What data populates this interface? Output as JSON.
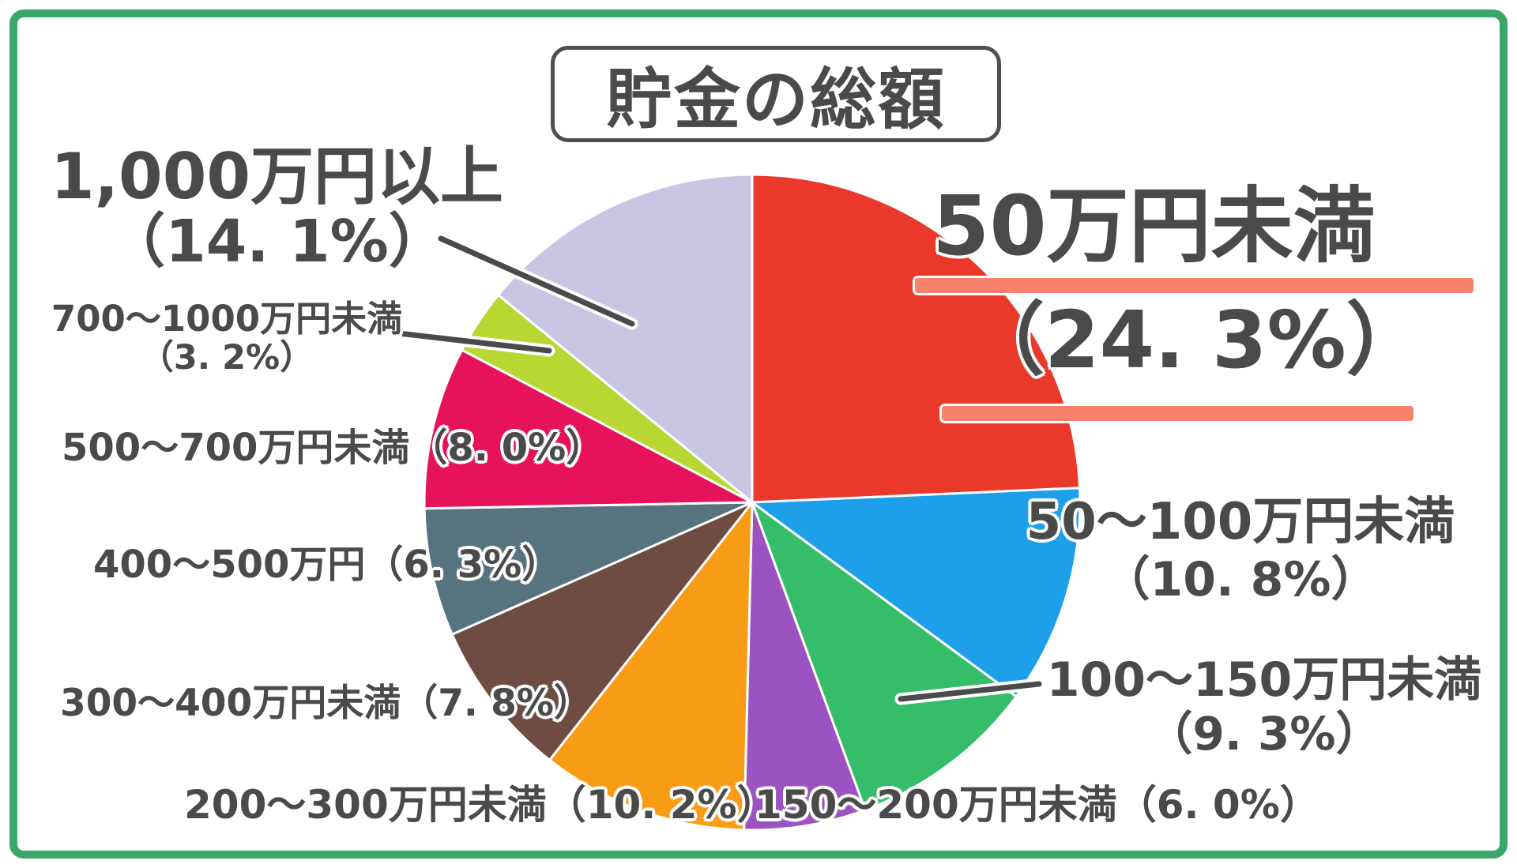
{
  "title": "貯金の総額",
  "colors": {
    "frame_green": "#3aa669",
    "underline_salmon": "#f8826b",
    "text_gray": "#4a4a4a",
    "slice_border_white": "#ffffff"
  },
  "chart_data": {
    "type": "pie",
    "title": "貯金の総額",
    "start_angle_deg": 0,
    "direction": "clockwise",
    "legend_position": "around-slices",
    "slices": [
      {
        "label": "50万円未満",
        "value": 24.3,
        "color": "#ea392a"
      },
      {
        "label": "50〜100万円未満",
        "value": 10.8,
        "color": "#1e9fe9"
      },
      {
        "label": "100〜150万円未満",
        "value": 9.3,
        "color": "#36bd69"
      },
      {
        "label": "150〜200万円未満",
        "value": 6.0,
        "color": "#9b53c1"
      },
      {
        "label": "200〜300万円未満",
        "value": 10.2,
        "color": "#f89c16"
      },
      {
        "label": "300〜400万円未満",
        "value": 7.8,
        "color": "#6f4c42"
      },
      {
        "label": "400〜500万円",
        "value": 6.3,
        "color": "#56737f"
      },
      {
        "label": "500〜700万円未満",
        "value": 8.0,
        "color": "#e6135c"
      },
      {
        "label": "700〜1000万円未満",
        "value": 3.2,
        "color": "#b8d733"
      },
      {
        "label": "1,000万円以上",
        "value": 14.1,
        "color": "#c9c6e4"
      }
    ]
  },
  "labels": {
    "u50": {
      "line1": "50万円未満",
      "line2": "（24. 3%）"
    },
    "r50_100": {
      "line1": "50〜100万円未満",
      "line2": "（10. 8%）"
    },
    "r100_150": {
      "line1": "100〜150万円未満",
      "line2": "（9. 3%）"
    },
    "r150_200": {
      "text": "150〜200万円未満（6. 0%）"
    },
    "r200_300": {
      "text": "200〜300万円未満（10. 2%）"
    },
    "r300_400": {
      "text": "300〜400万円未満（7. 8%）"
    },
    "r400_500": {
      "text": "400〜500万円（6. 3%）"
    },
    "r500_700": {
      "text": "500〜700万円未満（8. 0%）"
    },
    "r700_1000": {
      "line1": "700〜1000万円未満",
      "line2": "（3. 2%）"
    },
    "over1000": {
      "line1": "1,000万円以上",
      "line2": "（14. 1%）"
    }
  }
}
